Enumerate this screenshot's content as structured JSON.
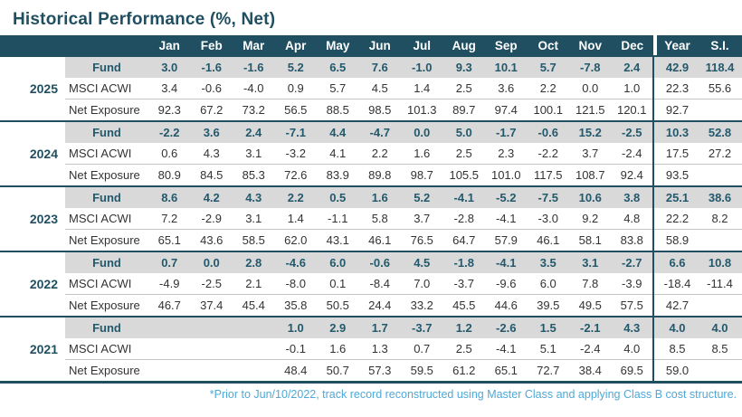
{
  "title": "Historical Performance (%, Net)",
  "footnote": "*Prior to Jun/10/2022, track record reconstructed using Master Class and applying Class B cost structure.",
  "colors": {
    "header_teal": "#1F4F60",
    "fund_value_teal": "#23596C",
    "reconstructed_blue": "#4FA8D6",
    "fund_band_gray": "#D9D9D9",
    "body_text": "#333333"
  },
  "chart_data": {
    "type": "table",
    "title": "Historical Performance (%, Net)",
    "month_headers": [
      "Jan",
      "Feb",
      "Mar",
      "Apr",
      "May",
      "Jun",
      "Jul",
      "Aug",
      "Sep",
      "Oct",
      "Nov",
      "Dec"
    ],
    "summary_headers": [
      "Year",
      "S.I."
    ],
    "row_labels": [
      "Fund",
      "MSCI ACWI",
      "Net Exposure"
    ],
    "year_groups": [
      {
        "year": "2025",
        "rows": [
          {
            "label": "Fund",
            "monthly": [
              "3.0",
              "-1.6",
              "-1.6",
              "5.2",
              "6.5",
              "7.6",
              "-1.0",
              "9.3",
              "10.1",
              "5.7",
              "-7.8",
              "2.4"
            ],
            "year_total": "42.9",
            "since_inception": "118.4",
            "reconstructed_months": [],
            "reconstructed_year": false
          },
          {
            "label": "MSCI ACWI",
            "monthly": [
              "3.4",
              "-0.6",
              "-4.0",
              "0.9",
              "5.7",
              "4.5",
              "1.4",
              "2.5",
              "3.6",
              "2.2",
              "0.0",
              "1.0"
            ],
            "year_total": "22.3",
            "since_inception": "55.6"
          },
          {
            "label": "Net Exposure",
            "monthly": [
              "92.3",
              "67.2",
              "73.2",
              "56.5",
              "88.5",
              "98.5",
              "101.3",
              "89.7",
              "97.4",
              "100.1",
              "121.5",
              "120.1"
            ],
            "year_total": "92.7",
            "since_inception": ""
          }
        ]
      },
      {
        "year": "2024",
        "rows": [
          {
            "label": "Fund",
            "monthly": [
              "-2.2",
              "3.6",
              "2.4",
              "-7.1",
              "4.4",
              "-4.7",
              "0.0",
              "5.0",
              "-1.7",
              "-0.6",
              "15.2",
              "-2.5"
            ],
            "year_total": "10.3",
            "since_inception": "52.8",
            "reconstructed_months": [],
            "reconstructed_year": false
          },
          {
            "label": "MSCI ACWI",
            "monthly": [
              "0.6",
              "4.3",
              "3.1",
              "-3.2",
              "4.1",
              "2.2",
              "1.6",
              "2.5",
              "2.3",
              "-2.2",
              "3.7",
              "-2.4"
            ],
            "year_total": "17.5",
            "since_inception": "27.2"
          },
          {
            "label": "Net Exposure",
            "monthly": [
              "80.9",
              "84.5",
              "85.3",
              "72.6",
              "83.9",
              "89.8",
              "98.7",
              "105.5",
              "101.0",
              "117.5",
              "108.7",
              "92.4"
            ],
            "year_total": "93.5",
            "since_inception": ""
          }
        ]
      },
      {
        "year": "2023",
        "rows": [
          {
            "label": "Fund",
            "monthly": [
              "8.6",
              "4.2",
              "4.3",
              "2.2",
              "0.5",
              "1.6",
              "5.2",
              "-4.1",
              "-5.2",
              "-7.5",
              "10.6",
              "3.8"
            ],
            "year_total": "25.1",
            "since_inception": "38.6",
            "reconstructed_months": [],
            "reconstructed_year": false
          },
          {
            "label": "MSCI ACWI",
            "monthly": [
              "7.2",
              "-2.9",
              "3.1",
              "1.4",
              "-1.1",
              "5.8",
              "3.7",
              "-2.8",
              "-4.1",
              "-3.0",
              "9.2",
              "4.8"
            ],
            "year_total": "22.2",
            "since_inception": "8.2"
          },
          {
            "label": "Net Exposure",
            "monthly": [
              "65.1",
              "43.6",
              "58.5",
              "62.0",
              "43.1",
              "46.1",
              "76.5",
              "64.7",
              "57.9",
              "46.1",
              "58.1",
              "83.8"
            ],
            "year_total": "58.9",
            "since_inception": ""
          }
        ]
      },
      {
        "year": "2022",
        "rows": [
          {
            "label": "Fund",
            "monthly": [
              "0.7",
              "0.0",
              "2.8",
              "-4.6",
              "6.0",
              "-0.6",
              "4.5",
              "-1.8",
              "-4.1",
              "3.5",
              "3.1",
              "-2.7"
            ],
            "year_total": "6.6",
            "since_inception": "10.8",
            "reconstructed_months": [
              0,
              1,
              2,
              3,
              4,
              5
            ],
            "reconstructed_year": false
          },
          {
            "label": "MSCI ACWI",
            "monthly": [
              "-4.9",
              "-2.5",
              "2.1",
              "-8.0",
              "0.1",
              "-8.4",
              "7.0",
              "-3.7",
              "-9.6",
              "6.0",
              "7.8",
              "-3.9"
            ],
            "year_total": "-18.4",
            "since_inception": "-11.4"
          },
          {
            "label": "Net Exposure",
            "monthly": [
              "46.7",
              "37.4",
              "45.4",
              "35.8",
              "50.5",
              "24.4",
              "33.2",
              "45.5",
              "44.6",
              "39.5",
              "49.5",
              "57.5"
            ],
            "year_total": "42.7",
            "since_inception": ""
          }
        ]
      },
      {
        "year": "2021",
        "rows": [
          {
            "label": "Fund",
            "monthly": [
              "",
              "",
              "",
              "1.0",
              "2.9",
              "1.7",
              "-3.7",
              "1.2",
              "-2.6",
              "1.5",
              "-2.1",
              "4.3"
            ],
            "year_total": "4.0",
            "since_inception": "4.0",
            "reconstructed_months": [
              3,
              4,
              5,
              6,
              7,
              8,
              9,
              10,
              11
            ],
            "reconstructed_year": true
          },
          {
            "label": "MSCI ACWI",
            "monthly": [
              "",
              "",
              "",
              "-0.1",
              "1.6",
              "1.3",
              "0.7",
              "2.5",
              "-4.1",
              "5.1",
              "-2.4",
              "4.0"
            ],
            "year_total": "8.5",
            "since_inception": "8.5"
          },
          {
            "label": "Net Exposure",
            "monthly": [
              "",
              "",
              "",
              "48.4",
              "50.7",
              "57.3",
              "59.5",
              "61.2",
              "65.1",
              "72.7",
              "38.4",
              "69.5"
            ],
            "year_total": "59.0",
            "since_inception": ""
          }
        ]
      }
    ]
  }
}
